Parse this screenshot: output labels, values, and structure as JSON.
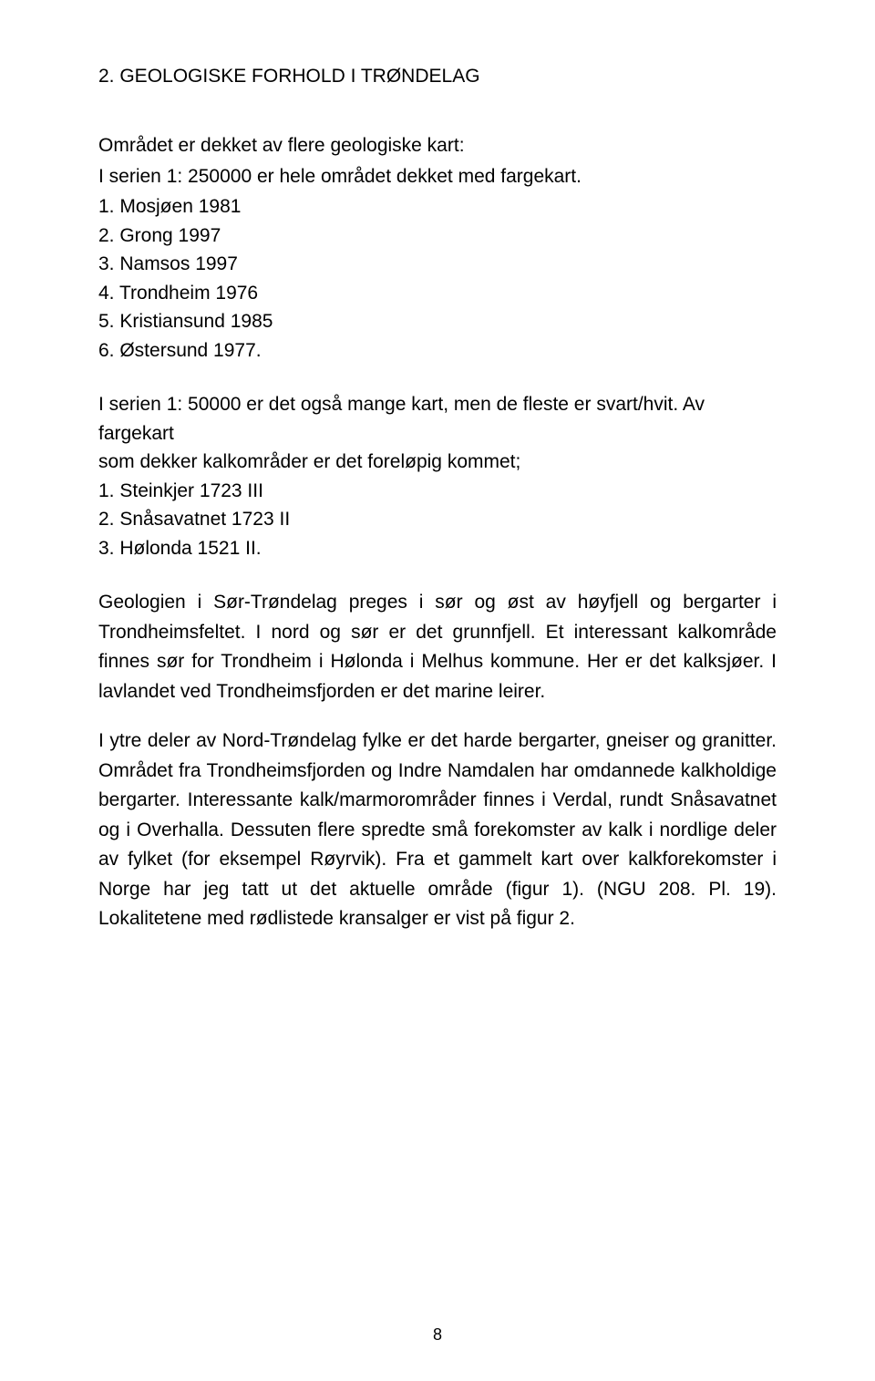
{
  "section_title": "2. GEOLOGISKE FORHOLD I TRØNDELAG",
  "intro_line1": "Området er dekket av flere geologiske kart:",
  "intro_line2": "I serien 1: 250000 er hele området dekket med fargekart.",
  "map_series_250k": [
    "1. Mosjøen 1981",
    "2. Grong 1997",
    "3. Namsos 1997",
    "4. Trondheim 1976",
    "5. Kristiansund 1985",
    "6. Østersund 1977."
  ],
  "sublist_intro_line1": "I serien 1: 50000 er det også mange kart, men de fleste er svart/hvit. Av fargekart",
  "sublist_intro_line2": "som dekker kalkområder er det foreløpig kommet;",
  "map_series_50k": [
    "1. Steinkjer 1723 III",
    "2. Snåsavatnet 1723 II",
    "3. Hølonda 1521 II."
  ],
  "paragraph1": "Geologien i Sør-Trøndelag preges i sør og øst av høyfjell og bergarter i Trondheimsfeltet. I nord og sør er det grunnfjell. Et interessant kalkområde finnes sør for Trondheim i Hølonda i Melhus kommune. Her er det kalksjøer. I lavlandet ved Trondheimsfjorden er det marine leirer.",
  "paragraph2": "I ytre deler av Nord-Trøndelag fylke er det harde bergarter, gneiser og granitter. Området fra Trondheimsfjorden og Indre Namdalen har omdannede kalkholdige bergarter. Interessante kalk/marmorområder finnes i Verdal, rundt Snåsavatnet og i Overhalla. Dessuten flere spredte små forekomster av kalk i nordlige deler av fylket (for eksempel Røyrvik). Fra et gammelt kart over kalkforekomster i Norge har jeg tatt ut det aktuelle område (figur 1). (NGU 208. Pl. 19). Lokalitetene med rødlistede kransalger er vist på figur 2.",
  "page_number": "8"
}
